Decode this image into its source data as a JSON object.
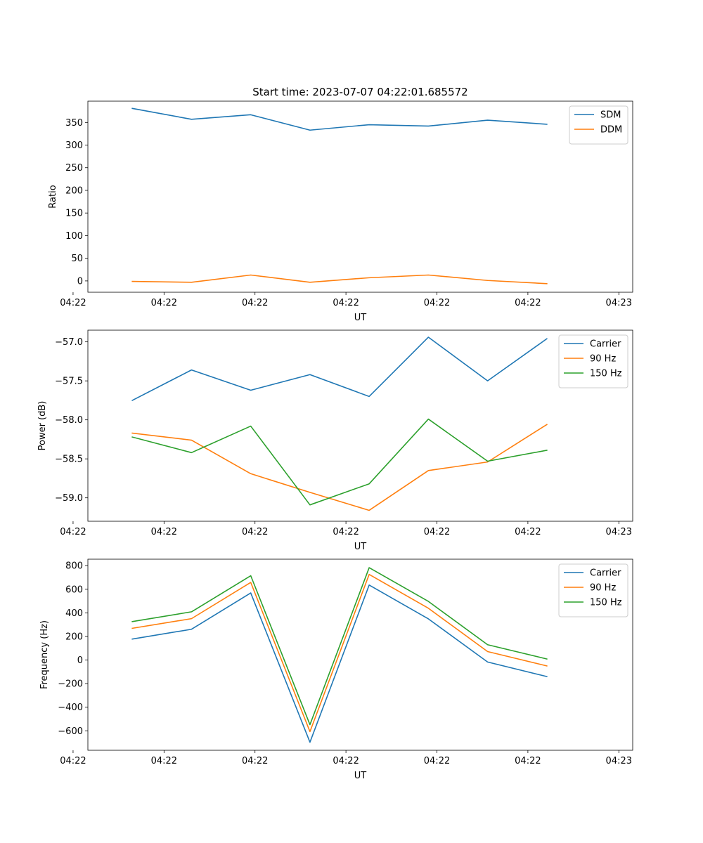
{
  "figure": {
    "title": "Start time: 2023-07-07 04:22:01.685572"
  },
  "chart_data": [
    {
      "type": "line",
      "title": "Start time: 2023-07-07 04:22:01.685572",
      "xlabel": "UT",
      "ylabel": "Ratio",
      "x": [
        1,
        2,
        3,
        4,
        5,
        6,
        7,
        8
      ],
      "xlim": [
        0.25,
        9.45
      ],
      "ylim": [
        -25,
        397
      ],
      "xticks": [
        {
          "value": 0,
          "label": "04:22"
        },
        {
          "value": 1.536,
          "label": "04:22"
        },
        {
          "value": 3.072,
          "label": "04:22"
        },
        {
          "value": 4.608,
          "label": "04:22"
        },
        {
          "value": 6.144,
          "label": "04:22"
        },
        {
          "value": 7.68,
          "label": "04:22"
        },
        {
          "value": 9.216,
          "label": "04:23"
        }
      ],
      "yticks": [
        0,
        50,
        100,
        150,
        200,
        250,
        300,
        350
      ],
      "legend_position": "top-right",
      "series": [
        {
          "name": "SDM",
          "color": "#1f77b4",
          "values": [
            381,
            357,
            367,
            333,
            345,
            342,
            355,
            346
          ]
        },
        {
          "name": "DDM",
          "color": "#ff7f0e",
          "values": [
            -1,
            -3,
            13,
            -3,
            7,
            13,
            1,
            -6
          ]
        }
      ]
    },
    {
      "type": "line",
      "title": "",
      "xlabel": "UT",
      "ylabel": "Power (dB)",
      "x": [
        1,
        2,
        3,
        4,
        5,
        6,
        7,
        8
      ],
      "xlim": [
        0.25,
        9.45
      ],
      "ylim": [
        -59.3,
        -56.85
      ],
      "xticks": [
        {
          "value": 0,
          "label": "04:22"
        },
        {
          "value": 1.536,
          "label": "04:22"
        },
        {
          "value": 3.072,
          "label": "04:22"
        },
        {
          "value": 4.608,
          "label": "04:22"
        },
        {
          "value": 6.144,
          "label": "04:22"
        },
        {
          "value": 7.68,
          "label": "04:22"
        },
        {
          "value": 9.216,
          "label": "04:23"
        }
      ],
      "yticks": [
        {
          "value": -59.0,
          "label": "−59.0"
        },
        {
          "value": -58.5,
          "label": "−58.5"
        },
        {
          "value": -58.0,
          "label": "−58.0"
        },
        {
          "value": -57.5,
          "label": "−57.5"
        },
        {
          "value": -57.0,
          "label": "−57.0"
        }
      ],
      "legend_position": "top-right",
      "series": [
        {
          "name": "Carrier",
          "color": "#1f77b4",
          "values": [
            -57.75,
            -57.36,
            -57.62,
            -57.42,
            -57.7,
            -56.94,
            -57.5,
            -56.96
          ]
        },
        {
          "name": "90 Hz",
          "color": "#ff7f0e",
          "values": [
            -58.17,
            -58.26,
            -58.69,
            -58.93,
            -59.16,
            -58.65,
            -58.54,
            -58.06
          ]
        },
        {
          "name": "150 Hz",
          "color": "#2ca02c",
          "values": [
            -58.22,
            -58.42,
            -58.08,
            -59.09,
            -58.82,
            -57.99,
            -58.53,
            -58.39
          ]
        }
      ]
    },
    {
      "type": "line",
      "title": "",
      "xlabel": "UT",
      "ylabel": "Frequency (Hz)",
      "x": [
        1,
        2,
        3,
        4,
        5,
        6,
        7,
        8
      ],
      "xlim": [
        0.25,
        9.45
      ],
      "ylim": [
        -765,
        855
      ],
      "xticks": [
        {
          "value": 0,
          "label": "04:22"
        },
        {
          "value": 1.536,
          "label": "04:22"
        },
        {
          "value": 3.072,
          "label": "04:22"
        },
        {
          "value": 4.608,
          "label": "04:22"
        },
        {
          "value": 6.144,
          "label": "04:22"
        },
        {
          "value": 7.68,
          "label": "04:22"
        },
        {
          "value": 9.216,
          "label": "04:23"
        }
      ],
      "yticks": [
        {
          "value": -600,
          "label": "−600"
        },
        {
          "value": -400,
          "label": "−400"
        },
        {
          "value": -200,
          "label": "−200"
        },
        {
          "value": 0,
          "label": "0"
        },
        {
          "value": 200,
          "label": "200"
        },
        {
          "value": 400,
          "label": "400"
        },
        {
          "value": 600,
          "label": "600"
        },
        {
          "value": 800,
          "label": "800"
        }
      ],
      "legend_position": "top-right",
      "series": [
        {
          "name": "Carrier",
          "color": "#1f77b4",
          "values": [
            178,
            261,
            569,
            -697,
            636,
            349,
            -17,
            -140
          ]
        },
        {
          "name": "90 Hz",
          "color": "#ff7f0e",
          "values": [
            269,
            351,
            658,
            -607,
            726,
            439,
            72,
            -50
          ]
        },
        {
          "name": "150 Hz",
          "color": "#2ca02c",
          "values": [
            326,
            409,
            715,
            -548,
            783,
            497,
            130,
            9
          ]
        }
      ]
    }
  ]
}
